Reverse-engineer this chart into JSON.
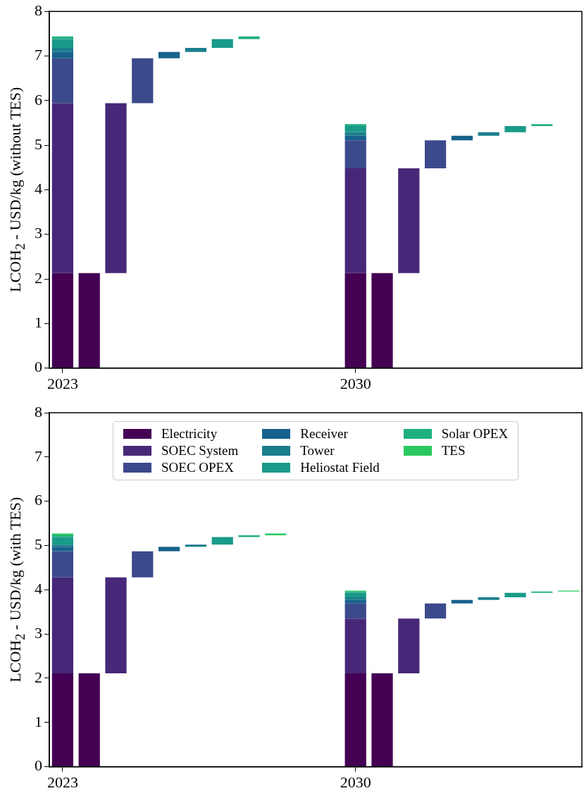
{
  "chart_data": [
    {
      "type": "bar",
      "ylabel": "LCOH$_{2}$ - USD/kg (without TES)",
      "ylim": [
        0,
        8
      ],
      "yticks": [
        0,
        1,
        2,
        3,
        4,
        5,
        6,
        7,
        8
      ],
      "grid": false,
      "categories": [
        "2023",
        null,
        null,
        null,
        null,
        null,
        null,
        null,
        null,
        null,
        null,
        "2030",
        null,
        null,
        null,
        null,
        null,
        null,
        null,
        null
      ],
      "series": [
        {
          "color": "#440154",
          "values": [
            2.13,
            2.13,
            null,
            null,
            null,
            null,
            null,
            null,
            null,
            null,
            null,
            2.13,
            2.13,
            null,
            null,
            null,
            null,
            null,
            null,
            null
          ],
          "base": [
            0,
            0,
            null,
            null,
            null,
            null,
            null,
            null,
            null,
            null,
            null,
            0,
            0,
            null,
            null,
            null,
            null,
            null,
            null,
            null
          ]
        },
        {
          "color": "#472878",
          "values": [
            3.81,
            null,
            3.81,
            null,
            null,
            null,
            null,
            null,
            null,
            null,
            null,
            2.35,
            null,
            2.35,
            null,
            null,
            null,
            null,
            null,
            null
          ],
          "base": [
            2.13,
            null,
            2.13,
            null,
            null,
            null,
            null,
            null,
            null,
            null,
            null,
            2.13,
            null,
            2.13,
            null,
            null,
            null,
            null,
            null,
            null
          ]
        },
        {
          "color": "#3b4a8c",
          "values": [
            1.01,
            null,
            null,
            1.01,
            null,
            null,
            null,
            null,
            null,
            null,
            null,
            0.63,
            null,
            null,
            0.63,
            null,
            null,
            null,
            null,
            null
          ],
          "base": [
            5.94,
            null,
            null,
            5.94,
            null,
            null,
            null,
            null,
            null,
            null,
            null,
            4.48,
            null,
            null,
            4.48,
            null,
            null,
            null,
            null,
            null
          ]
        },
        {
          "color": "#17628c",
          "values": [
            0.14,
            null,
            null,
            null,
            0.14,
            null,
            null,
            null,
            null,
            null,
            null,
            0.1,
            null,
            null,
            null,
            0.1,
            null,
            null,
            null,
            null
          ],
          "base": [
            6.95,
            null,
            null,
            null,
            6.95,
            null,
            null,
            null,
            null,
            null,
            null,
            5.11,
            null,
            null,
            null,
            5.11,
            null,
            null,
            null,
            null
          ]
        },
        {
          "color": "#1b7e8c",
          "values": [
            0.09,
            null,
            null,
            null,
            null,
            0.09,
            null,
            null,
            null,
            null,
            null,
            0.08,
            null,
            null,
            null,
            null,
            0.08,
            null,
            null,
            null
          ],
          "base": [
            7.09,
            null,
            null,
            null,
            null,
            7.09,
            null,
            null,
            null,
            null,
            null,
            5.21,
            null,
            null,
            null,
            null,
            5.21,
            null,
            null,
            null
          ]
        },
        {
          "color": "#1a9a8a",
          "values": [
            0.2,
            null,
            null,
            null,
            null,
            null,
            0.2,
            null,
            null,
            null,
            null,
            0.14,
            null,
            null,
            null,
            null,
            null,
            0.14,
            null,
            null
          ],
          "base": [
            7.18,
            null,
            null,
            null,
            null,
            null,
            7.18,
            null,
            null,
            null,
            null,
            5.29,
            null,
            null,
            null,
            null,
            null,
            5.29,
            null,
            null
          ]
        },
        {
          "color": "#20b07f",
          "values": [
            0.06,
            null,
            null,
            null,
            null,
            null,
            null,
            0.06,
            null,
            null,
            null,
            0.04,
            null,
            null,
            null,
            null,
            null,
            null,
            0.04,
            null
          ],
          "base": [
            7.38,
            null,
            null,
            null,
            null,
            null,
            null,
            7.38,
            null,
            null,
            null,
            5.43,
            null,
            null,
            null,
            null,
            null,
            null,
            5.43,
            null
          ]
        }
      ]
    },
    {
      "type": "bar",
      "ylabel": "LCOH$_{2}$ - USD/kg (with TES)",
      "ylim": [
        0,
        8
      ],
      "yticks": [
        0,
        1,
        2,
        3,
        4,
        5,
        6,
        7,
        8
      ],
      "grid": false,
      "legend": "top",
      "categories": [
        "2023",
        null,
        null,
        null,
        null,
        null,
        null,
        null,
        null,
        null,
        null,
        "2030",
        null,
        null,
        null,
        null,
        null,
        null,
        null,
        null
      ],
      "series": [
        {
          "name": "Electricity",
          "color": "#440154",
          "values": [
            2.11,
            2.11,
            null,
            null,
            null,
            null,
            null,
            null,
            null,
            null,
            null,
            2.11,
            2.11,
            null,
            null,
            null,
            null,
            null,
            null,
            null
          ],
          "base": [
            0,
            0,
            null,
            null,
            null,
            null,
            null,
            null,
            null,
            null,
            null,
            0,
            0,
            null,
            null,
            null,
            null,
            null,
            null,
            null
          ]
        },
        {
          "name": "SOEC System",
          "color": "#472878",
          "values": [
            2.17,
            null,
            2.17,
            null,
            null,
            null,
            null,
            null,
            null,
            null,
            null,
            1.24,
            null,
            1.24,
            null,
            null,
            null,
            null,
            null,
            null
          ],
          "base": [
            2.11,
            null,
            2.11,
            null,
            null,
            null,
            null,
            null,
            null,
            null,
            null,
            2.11,
            null,
            2.11,
            null,
            null,
            null,
            null,
            null,
            null
          ]
        },
        {
          "name": "SOEC OPEX",
          "color": "#3b4a8c",
          "values": [
            0.59,
            null,
            null,
            0.59,
            null,
            null,
            null,
            null,
            null,
            null,
            null,
            0.34,
            null,
            null,
            0.34,
            null,
            null,
            null,
            null,
            null
          ],
          "base": [
            4.28,
            null,
            null,
            4.28,
            null,
            null,
            null,
            null,
            null,
            null,
            null,
            3.35,
            null,
            null,
            3.35,
            null,
            null,
            null,
            null,
            null
          ]
        },
        {
          "name": "Receiver",
          "color": "#17628c",
          "values": [
            0.1,
            null,
            null,
            null,
            0.1,
            null,
            null,
            null,
            null,
            null,
            null,
            0.08,
            null,
            null,
            null,
            0.08,
            null,
            null,
            null,
            null
          ],
          "base": [
            4.87,
            null,
            null,
            null,
            4.87,
            null,
            null,
            null,
            null,
            null,
            null,
            3.69,
            null,
            null,
            null,
            3.69,
            null,
            null,
            null,
            null
          ]
        },
        {
          "name": "Tower",
          "color": "#1b7e8c",
          "values": [
            0.05,
            null,
            null,
            null,
            null,
            0.05,
            null,
            null,
            null,
            null,
            null,
            0.06,
            null,
            null,
            null,
            null,
            0.06,
            null,
            null,
            null
          ],
          "base": [
            4.97,
            null,
            null,
            null,
            null,
            4.97,
            null,
            null,
            null,
            null,
            null,
            3.77,
            null,
            null,
            null,
            null,
            3.77,
            null,
            null,
            null
          ]
        },
        {
          "name": "Heliostat Field",
          "color": "#1a9a8a",
          "values": [
            0.17,
            null,
            null,
            null,
            null,
            null,
            0.17,
            null,
            null,
            null,
            null,
            0.1,
            null,
            null,
            null,
            null,
            null,
            0.1,
            null,
            null
          ],
          "base": [
            5.02,
            null,
            null,
            null,
            null,
            null,
            5.02,
            null,
            null,
            null,
            null,
            3.83,
            null,
            null,
            null,
            null,
            null,
            3.83,
            null,
            null
          ]
        },
        {
          "name": "Solar OPEX",
          "color": "#20b07f",
          "values": [
            0.04,
            null,
            null,
            null,
            null,
            null,
            null,
            0.04,
            null,
            null,
            null,
            0.03,
            null,
            null,
            null,
            null,
            null,
            null,
            0.03,
            null
          ],
          "base": [
            5.19,
            null,
            null,
            null,
            null,
            null,
            null,
            5.19,
            null,
            null,
            null,
            3.93,
            null,
            null,
            null,
            null,
            null,
            null,
            3.93,
            null
          ]
        },
        {
          "name": "TES",
          "color": "#2ac85e",
          "values": [
            0.04,
            null,
            null,
            null,
            null,
            null,
            null,
            null,
            0.04,
            null,
            null,
            0.02,
            null,
            null,
            null,
            null,
            null,
            null,
            null,
            0.02
          ],
          "base": [
            5.23,
            null,
            null,
            null,
            null,
            null,
            null,
            null,
            5.23,
            null,
            null,
            3.96,
            null,
            null,
            null,
            null,
            null,
            null,
            null,
            3.96
          ]
        }
      ]
    }
  ]
}
